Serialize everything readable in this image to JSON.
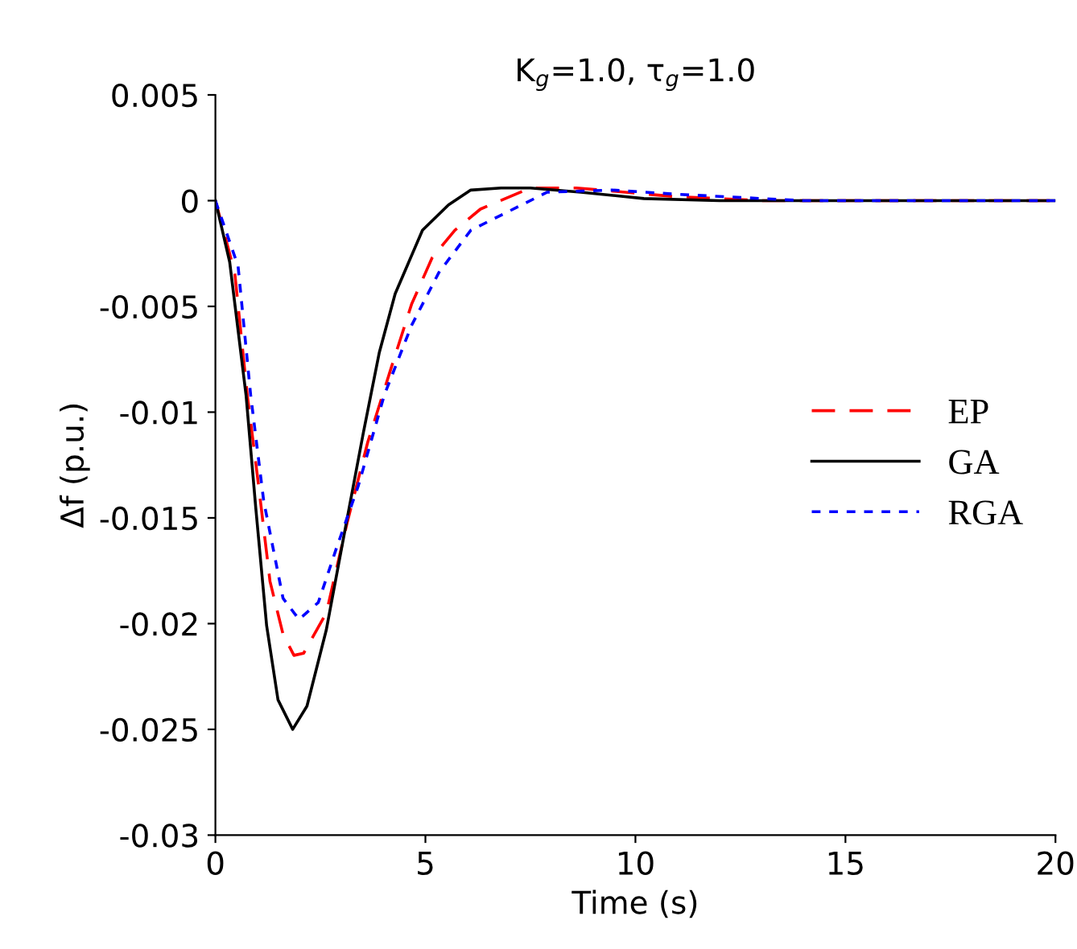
{
  "chart_data": {
    "type": "line",
    "title": "K$_{g}$=1.0, τ$_{g}$=1.0",
    "xlabel": "Time (s)",
    "ylabel": "Δf (p.u.)",
    "xlim": [
      0,
      20
    ],
    "xticks": [
      0,
      5,
      10,
      15,
      20
    ],
    "ylim": [
      -0.03,
      0.005
    ],
    "yticks": [
      -0.03,
      -0.025,
      -0.02,
      -0.015,
      -0.01,
      -0.005,
      0,
      0.005
    ],
    "grid": false,
    "legend": "right",
    "series": [
      {
        "name": "EP",
        "color": "#ff0000",
        "line_style": "dashed",
        "x": [
          0,
          0.46,
          0.76,
          1.03,
          1.3,
          1.61,
          1.87,
          2.1,
          2.64,
          3.14,
          3.63,
          4.17,
          4.67,
          5.16,
          5.7,
          6.31,
          7.5,
          8.6,
          10.9,
          13,
          20
        ],
        "values": [
          0,
          -0.0034,
          -0.0092,
          -0.0135,
          -0.018,
          -0.0205,
          -0.0215,
          -0.0214,
          -0.0195,
          -0.0152,
          -0.0114,
          -0.008,
          -0.0049,
          -0.0027,
          -0.0014,
          -0.0004,
          0.0006,
          0.0006,
          0.0002,
          0,
          0
        ]
      },
      {
        "name": "GA",
        "color": "#000000",
        "line_style": "solid",
        "x": [
          0,
          0.34,
          0.73,
          0.96,
          1.22,
          1.49,
          1.84,
          2.18,
          2.64,
          3.14,
          3.52,
          3.9,
          4.28,
          4.93,
          5.55,
          6.08,
          6.8,
          7.5,
          8.7,
          10.2,
          12,
          20
        ],
        "values": [
          0,
          -0.0029,
          -0.0092,
          -0.0145,
          -0.0201,
          -0.0236,
          -0.025,
          -0.0239,
          -0.0203,
          -0.015,
          -0.011,
          -0.0072,
          -0.0044,
          -0.0014,
          -0.0002,
          0.0005,
          0.0006,
          0.0006,
          0.0004,
          0.0001,
          0,
          0
        ]
      },
      {
        "name": "RGA",
        "color": "#0000ff",
        "line_style": "dotted",
        "x": [
          0,
          0.54,
          0.84,
          1.15,
          1.61,
          1.99,
          2.45,
          2.87,
          3.4,
          4.02,
          4.67,
          5.32,
          6.08,
          7.9,
          9.45,
          11,
          14,
          20
        ],
        "values": [
          0,
          -0.0031,
          -0.0092,
          -0.0142,
          -0.0188,
          -0.0198,
          -0.019,
          -0.0165,
          -0.0135,
          -0.0092,
          -0.0059,
          -0.0034,
          -0.0014,
          0.0004,
          0.0005,
          0.0003,
          0,
          0
        ]
      }
    ]
  }
}
